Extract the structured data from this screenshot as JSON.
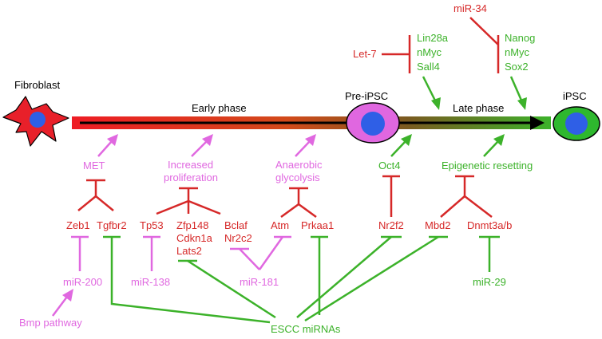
{
  "colors": {
    "red": "#d62828",
    "green": "#3cb22a",
    "magenta": "#e068e0",
    "black": "#000000",
    "fibroblast": "#e8202a",
    "nucleus": "#2f5fe6",
    "preipsc_cell": "#e067e0",
    "ipsc_cell": "#2eb82e"
  },
  "cells": {
    "fibroblast": "Fibroblast",
    "pre_ipsc": "Pre-iPSC",
    "ipsc": "iPSC"
  },
  "phases": {
    "early": "Early phase",
    "late": "Late phase"
  },
  "processes": {
    "met": "MET",
    "prolif_1": "Increased",
    "prolif_2": "proliferation",
    "glyc_1": "Anaerobic",
    "glyc_2": "glycolysis",
    "oct4": "Oct4",
    "epigenetic": "Epigenetic resetting"
  },
  "barriers": {
    "zeb1": "Zeb1",
    "tgfbr2": "Tgfbr2",
    "tp53": "Tp53",
    "zfp148": "Zfp148",
    "cdkn1a": "Cdkn1a",
    "lats2": "Lats2",
    "bclaf": "Bclaf",
    "nr2c2": "Nr2c2",
    "atm": "Atm",
    "prkaa1": "Prkaa1",
    "nr2f2": "Nr2f2",
    "mbd2": "Mbd2",
    "dnmt3ab": "Dnmt3a/b"
  },
  "mirnas": {
    "mir200": "miR-200",
    "mir138": "miR-138",
    "mir181": "miR-181",
    "mir29": "miR-29",
    "escc": "ESCC miRNAs",
    "bmp": "Bmp pathway",
    "let7": "Let-7",
    "mir34": "miR-34"
  },
  "factors_left": {
    "lin28a": "Lin28a",
    "nmyc": "nMyc",
    "sall4": "Sall4"
  },
  "factors_right": {
    "nanog": "Nanog",
    "nmyc": "nMyc",
    "sox2": "Sox2"
  }
}
